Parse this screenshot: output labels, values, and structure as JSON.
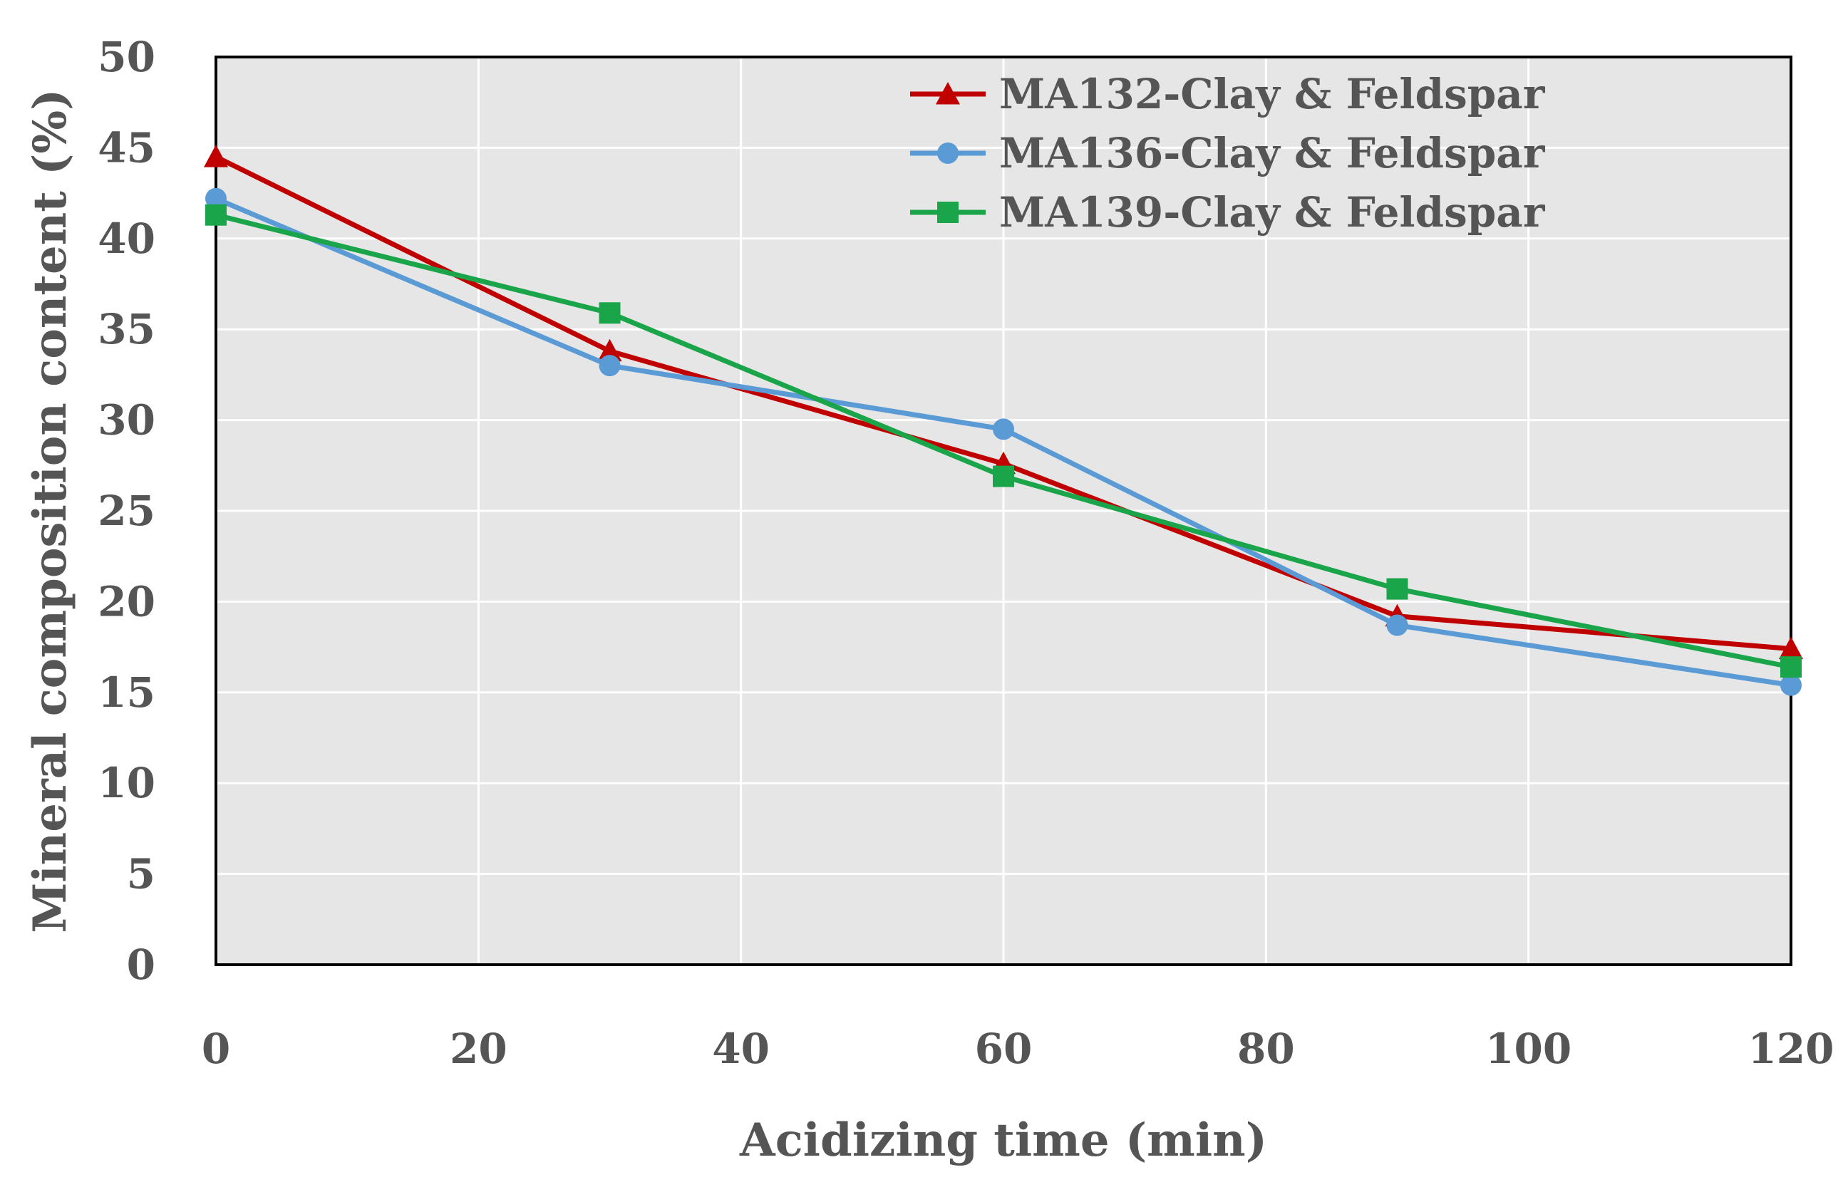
{
  "chart_data": {
    "type": "line",
    "title": "",
    "xlabel": "Acidizing time (min)",
    "ylabel": "Mineral composition content (%)",
    "xlim": [
      0,
      120
    ],
    "ylim": [
      0,
      50
    ],
    "xticks": [
      0,
      20,
      40,
      60,
      80,
      100,
      120
    ],
    "yticks": [
      0,
      5,
      10,
      15,
      20,
      25,
      30,
      35,
      40,
      45,
      50
    ],
    "grid": true,
    "legend_position": "top-right",
    "x": [
      0,
      30,
      60,
      90,
      120
    ],
    "series": [
      {
        "name": "MA132-Clay & Feldspar",
        "color": "#c00000",
        "marker": "triangle",
        "values": [
          44.5,
          33.8,
          27.6,
          19.2,
          17.4
        ]
      },
      {
        "name": "MA136-Clay & Feldspar",
        "color": "#5b9bd5",
        "marker": "circle",
        "values": [
          42.2,
          33.0,
          29.5,
          18.7,
          15.4
        ]
      },
      {
        "name": "MA139-Clay & Feldspar",
        "color": "#1aa54a",
        "marker": "square",
        "values": [
          41.3,
          35.9,
          26.9,
          20.7,
          16.4
        ]
      }
    ]
  }
}
